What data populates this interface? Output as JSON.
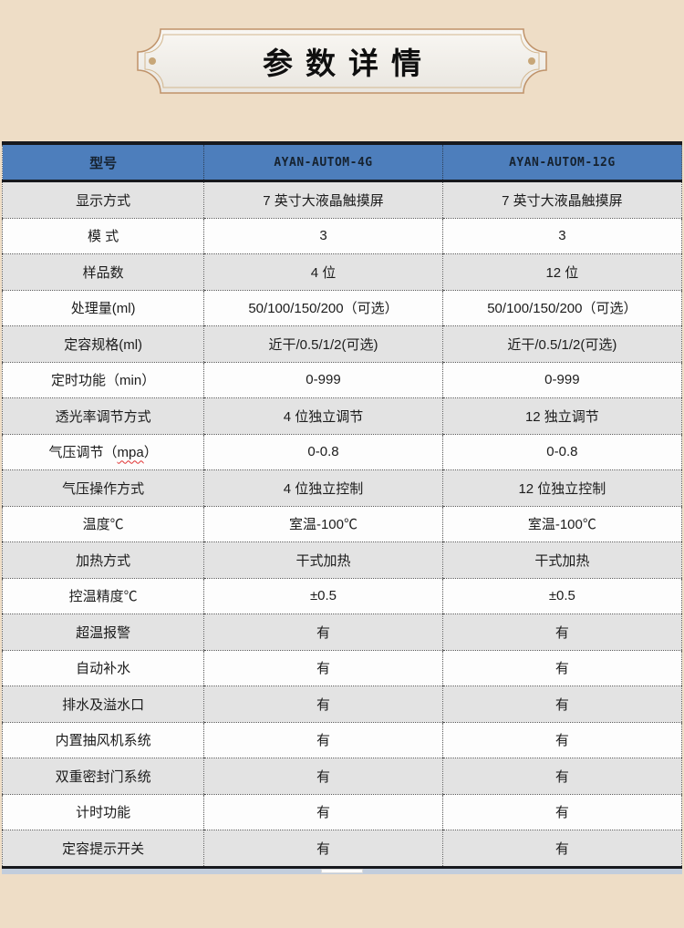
{
  "banner": {
    "title": "参数详情"
  },
  "colors": {
    "page_bg": "#eeddc6",
    "header_bg": "#4d7ebc",
    "dark_border": "#17191e",
    "row_alt_bg": "#e3e3e3",
    "banner_border": "#bf9269",
    "squiggle_red": "#e03131",
    "scrollbar_track": "#c2cddc"
  },
  "table": {
    "columns": [
      "型号",
      "AYAN-AUTOM-4G",
      "AYAN-AUTOM-12G"
    ],
    "rows": [
      {
        "label": "显示方式",
        "values": [
          "7 英寸大液晶触摸屏",
          "7 英寸大液晶触摸屏"
        ]
      },
      {
        "label": "模 式",
        "values": [
          "3",
          "3"
        ]
      },
      {
        "label": "样品数",
        "values": [
          "4 位",
          "12 位"
        ]
      },
      {
        "label": "处理量(ml)",
        "values": [
          "50/100/150/200（可选）",
          "50/100/150/200（可选）"
        ]
      },
      {
        "label": "定容规格(ml)",
        "values": [
          "近干/0.5/1/2(可选)",
          "近干/0.5/1/2(可选)"
        ]
      },
      {
        "label": "定时功能（min）",
        "values": [
          "0-999",
          "0-999"
        ]
      },
      {
        "label": "透光率调节方式",
        "values": [
          "4 位独立调节",
          "12 独立调节"
        ]
      },
      {
        "label": "气压调节（mpa）",
        "label_parts": [
          "气压调节（",
          "mpa",
          "）"
        ],
        "values": [
          "0-0.8",
          "0-0.8"
        ]
      },
      {
        "label": "气压操作方式",
        "values": [
          "4 位独立控制",
          "12 位独立控制"
        ]
      },
      {
        "label": "温度℃",
        "values": [
          "室温-100℃",
          "室温-100℃"
        ]
      },
      {
        "label": "加热方式",
        "values": [
          "干式加热",
          "干式加热"
        ]
      },
      {
        "label": "控温精度℃",
        "values": [
          "±0.5",
          "±0.5"
        ]
      },
      {
        "label": "超温报警",
        "values": [
          "有",
          "有"
        ]
      },
      {
        "label": "自动补水",
        "values": [
          "有",
          "有"
        ]
      },
      {
        "label": "排水及溢水口",
        "values": [
          "有",
          "有"
        ]
      },
      {
        "label": "内置抽风机系统",
        "values": [
          "有",
          "有"
        ]
      },
      {
        "label": "双重密封门系统",
        "values": [
          "有",
          "有"
        ]
      },
      {
        "label": "计时功能",
        "values": [
          "有",
          "有"
        ]
      },
      {
        "label": "定容提示开关",
        "values": [
          "有",
          "有"
        ]
      }
    ]
  }
}
